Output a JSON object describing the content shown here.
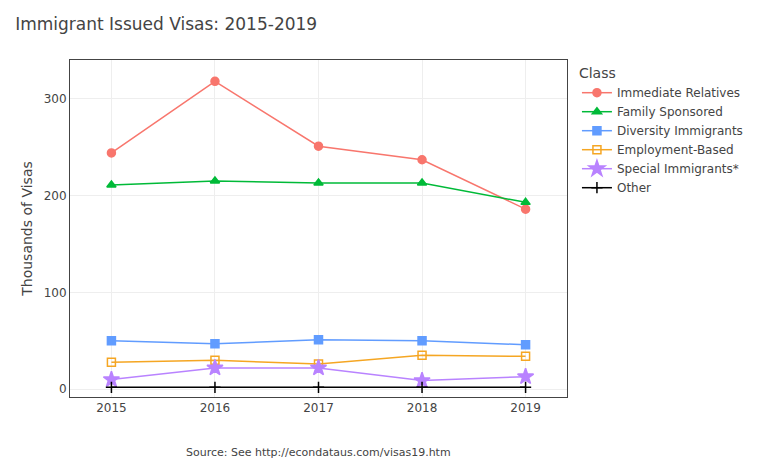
{
  "chart_data": {
    "type": "line",
    "title": "Immigrant Issued Visas: 2015-2019",
    "ylabel": "Thousands of Visas",
    "annotations": [
      "Source: See http://econdataus.com/visas19.htm"
    ],
    "legend_title": "Class",
    "x": [
      2015,
      2016,
      2017,
      2018,
      2019
    ],
    "xlim": [
      2014.6,
      2019.4
    ],
    "xticks": [
      2015,
      2016,
      2017,
      2018,
      2019
    ],
    "ylim": [
      -8,
      340
    ],
    "yticks": [
      0,
      100,
      200,
      300
    ],
    "grid": true,
    "series": [
      {
        "name": "Immediate Relatives",
        "color": "#F8766D",
        "marker": "circle",
        "values": [
          244,
          318,
          251,
          237,
          186
        ]
      },
      {
        "name": "Family Sponsored",
        "color": "#00BA38",
        "marker": "triangle",
        "values": [
          211,
          215,
          213,
          213,
          193
        ]
      },
      {
        "name": "Diversity Immigrants",
        "color": "#619CFF",
        "marker": "square",
        "values": [
          50,
          47,
          51,
          50,
          46
        ]
      },
      {
        "name": "Employment-Based",
        "color": "#F5A623",
        "marker": "square-open",
        "values": [
          28,
          30,
          26,
          35,
          34
        ]
      },
      {
        "name": "Special Immigrants*",
        "color": "#B983FF",
        "marker": "star",
        "values": [
          10,
          22,
          22,
          9,
          13
        ]
      },
      {
        "name": "Other",
        "color": "#000000",
        "marker": "plus",
        "values": [
          2,
          2,
          2,
          2,
          2
        ]
      }
    ]
  }
}
